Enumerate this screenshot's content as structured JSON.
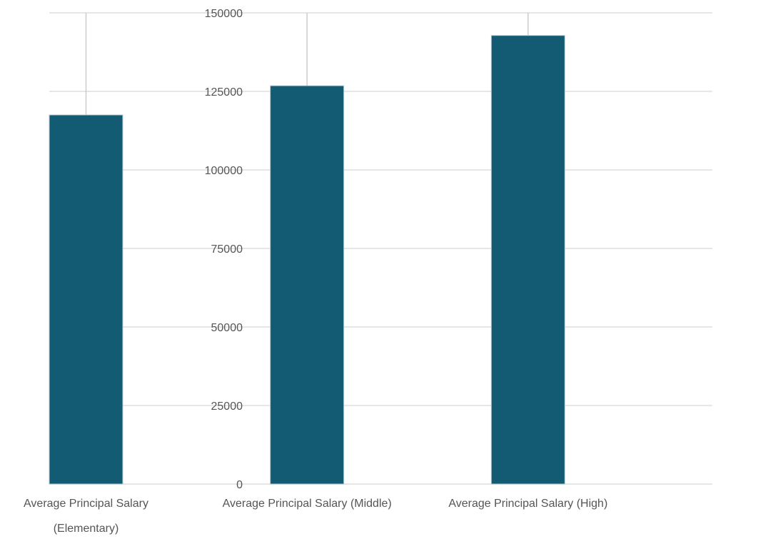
{
  "chart_data": {
    "type": "bar",
    "title": "",
    "xlabel": "",
    "ylabel": "",
    "categories": [
      [
        "Average Principal Salary",
        "(Elementary)"
      ],
      [
        "Average Principal Salary (Middle)"
      ],
      [
        "Average Principal Salary (High)"
      ]
    ],
    "values": [
      117500,
      126800,
      142800
    ],
    "ylim": [
      0,
      150000
    ],
    "yticks": [
      "0",
      "25000",
      "50000",
      "75000",
      "100000",
      "125000",
      "150000"
    ],
    "grid": true,
    "legend": "none",
    "colors": {
      "bar": "#135a73",
      "grid": "#dddddd",
      "tick_text": "#555555"
    }
  }
}
